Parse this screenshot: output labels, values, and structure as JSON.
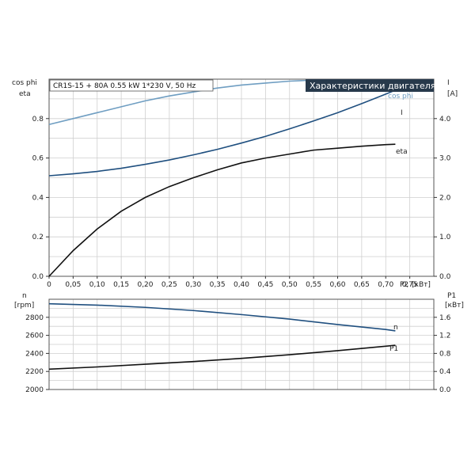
{
  "chart_data": [
    {
      "type": "line",
      "title": "Характеристики двигателя",
      "subtitle": "CR1S-15 + 80A   0.55 kW   1*230 V, 50 Hz",
      "xlabel": "P2",
      "xunit": "[кВт]",
      "ylabel_left": [
        "cos phi",
        "eta"
      ],
      "ylabel_right": [
        "I",
        "[A]"
      ],
      "xlim": [
        0,
        0.8
      ],
      "ylim_left": [
        0,
        1.0
      ],
      "ylim_right": [
        0,
        5.0
      ],
      "x_ticks": [
        "0",
        "0,05",
        "0,10",
        "0,15",
        "0,20",
        "0,25",
        "0,30",
        "0,35",
        "0,40",
        "0,45",
        "0,50",
        "0,55",
        "0,60",
        "0,65",
        "0,70",
        "0,75"
      ],
      "y_ticks_left": [
        "0.0",
        "0.2",
        "0.4",
        "0.6",
        "0.8"
      ],
      "y_ticks_right": [
        "0.0",
        "1.0",
        "2.0",
        "3.0",
        "4.0"
      ],
      "grid": true,
      "series": [
        {
          "name": "cos phi",
          "axis": "left",
          "color": "#6f9ec2",
          "x": [
            0,
            0.05,
            0.1,
            0.15,
            0.2,
            0.25,
            0.3,
            0.35,
            0.4,
            0.45,
            0.5,
            0.55,
            0.6,
            0.65,
            0.7,
            0.72
          ],
          "y": [
            0.77,
            0.8,
            0.83,
            0.86,
            0.89,
            0.915,
            0.935,
            0.955,
            0.97,
            0.98,
            0.99,
            0.995,
            0.995,
            0.99,
            0.98,
            0.975
          ]
        },
        {
          "name": "I",
          "axis": "right",
          "color": "#1f4f7f",
          "x": [
            0,
            0.05,
            0.1,
            0.15,
            0.2,
            0.25,
            0.3,
            0.35,
            0.4,
            0.45,
            0.5,
            0.55,
            0.6,
            0.65,
            0.7,
            0.72
          ],
          "y": [
            2.55,
            2.6,
            2.66,
            2.74,
            2.84,
            2.95,
            3.08,
            3.22,
            3.38,
            3.55,
            3.74,
            3.94,
            4.15,
            4.38,
            4.62,
            4.72
          ]
        },
        {
          "name": "eta",
          "axis": "left",
          "color": "#111111",
          "x": [
            0,
            0.05,
            0.1,
            0.15,
            0.2,
            0.25,
            0.3,
            0.35,
            0.4,
            0.45,
            0.5,
            0.55,
            0.6,
            0.65,
            0.7,
            0.72
          ],
          "y": [
            0.0,
            0.13,
            0.24,
            0.33,
            0.4,
            0.455,
            0.5,
            0.54,
            0.575,
            0.6,
            0.62,
            0.64,
            0.65,
            0.66,
            0.668,
            0.67
          ]
        }
      ]
    },
    {
      "type": "line",
      "xlim": [
        0,
        0.8
      ],
      "ylabel_left": [
        "n",
        "[rpm]"
      ],
      "ylabel_right": [
        "P1",
        "[кВт]"
      ],
      "ylim_left": [
        2000,
        3000
      ],
      "ylim_right": [
        0,
        2.0
      ],
      "y_ticks_left": [
        "2000",
        "2200",
        "2400",
        "2600",
        "2800"
      ],
      "y_ticks_right": [
        "0.0",
        "0.4",
        "0.8",
        "1.2",
        "1.6"
      ],
      "grid": true,
      "series": [
        {
          "name": "n",
          "axis": "left",
          "color": "#1f4f7f",
          "x": [
            0,
            0.1,
            0.2,
            0.3,
            0.4,
            0.5,
            0.6,
            0.7,
            0.72
          ],
          "y": [
            2950,
            2935,
            2910,
            2875,
            2830,
            2780,
            2720,
            2665,
            2650
          ]
        },
        {
          "name": "P1",
          "axis": "right",
          "color": "#111111",
          "x": [
            0,
            0.1,
            0.2,
            0.3,
            0.4,
            0.5,
            0.6,
            0.7,
            0.72
          ],
          "y": [
            0.45,
            0.5,
            0.56,
            0.62,
            0.69,
            0.77,
            0.86,
            0.96,
            0.98
          ]
        }
      ]
    }
  ]
}
